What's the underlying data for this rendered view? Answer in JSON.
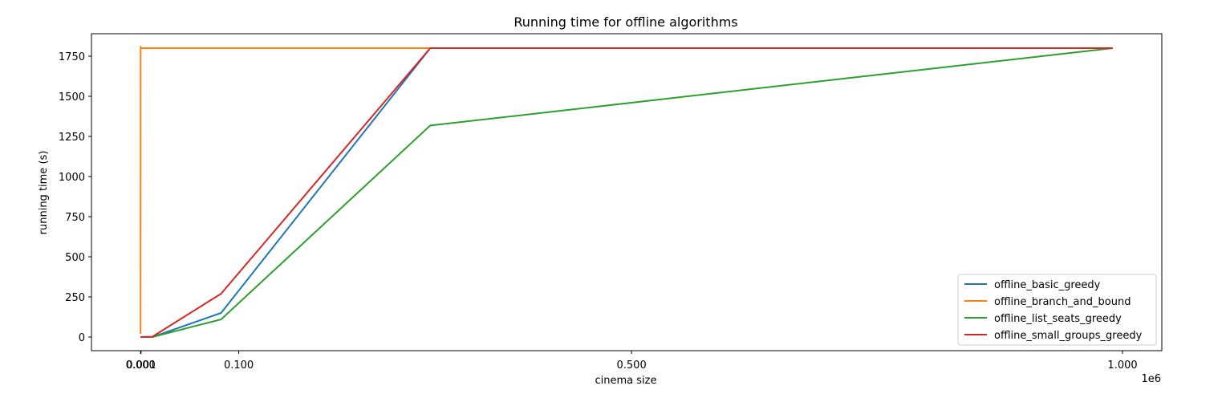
{
  "chart_data": {
    "type": "line",
    "title": "Running time for offline algorithms",
    "xlabel": "cinema size",
    "ylabel": "running time (s)",
    "x_offset_label": "1e6",
    "xlim": [
      -0.05,
      1.04
    ],
    "ylim": [
      -85,
      1890
    ],
    "xticks": [
      {
        "value": 0.0,
        "label": "0.000"
      },
      {
        "value": 0.0005,
        "label": "0.001"
      },
      {
        "value": 0.1,
        "label": "0.100"
      },
      {
        "value": 0.5,
        "label": "0.500"
      },
      {
        "value": 1.0,
        "label": "1.000"
      }
    ],
    "yticks": [
      0,
      250,
      500,
      750,
      1000,
      1250,
      1500,
      1750
    ],
    "grid": false,
    "legend_position": "lower right",
    "series": [
      {
        "name": "offline_basic_greedy",
        "color": "#1f77b4",
        "points": [
          [
            0.0,
            0
          ],
          [
            0.0001,
            0
          ],
          [
            0.0005,
            0
          ],
          [
            0.012,
            0
          ],
          [
            0.082,
            150
          ],
          [
            0.295,
            1800
          ],
          [
            0.99,
            1800
          ]
        ]
      },
      {
        "name": "offline_branch_and_bound",
        "color": "#ff7f0e",
        "points": [
          [
            0.0,
            20
          ],
          [
            0.0001,
            1810
          ],
          [
            0.0003,
            1800
          ],
          [
            0.0005,
            1800
          ],
          [
            0.012,
            1800
          ],
          [
            0.082,
            1800
          ],
          [
            0.295,
            1800
          ],
          [
            0.99,
            1800
          ]
        ]
      },
      {
        "name": "offline_list_seats_greedy",
        "color": "#2ca02c",
        "points": [
          [
            0.0,
            0
          ],
          [
            0.0001,
            0
          ],
          [
            0.0005,
            0
          ],
          [
            0.012,
            0
          ],
          [
            0.082,
            110
          ],
          [
            0.295,
            1318
          ],
          [
            0.99,
            1800
          ]
        ]
      },
      {
        "name": "offline_small_groups_greedy",
        "color": "#d62728",
        "points": [
          [
            0.0,
            0
          ],
          [
            0.0001,
            0
          ],
          [
            0.0005,
            0
          ],
          [
            0.012,
            2
          ],
          [
            0.082,
            270
          ],
          [
            0.295,
            1800
          ],
          [
            0.99,
            1800
          ]
        ]
      }
    ]
  }
}
